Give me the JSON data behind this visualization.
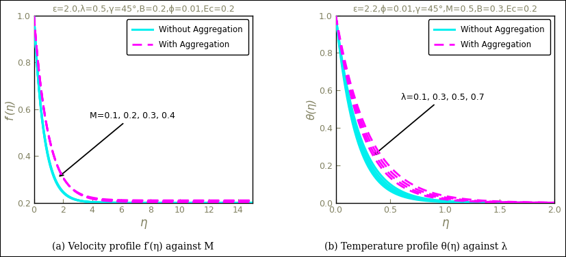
{
  "left_title": "ε=2.0,λ=0.5,γ=45°,B=0.2,ϕ=0.01,Ec=0.2",
  "right_title": "ε=2.2,ϕ=0.01,γ=45°,M=0.5,B=0.3,Ec=0.2",
  "left_xlabel": "η",
  "right_xlabel": "η",
  "left_ylabel": "f′(η)",
  "right_ylabel": "θ(η)",
  "left_caption": "(a) Velocity profile f′(η) against M",
  "right_caption": "(b) Temperature profile θ(η) against λ",
  "left_annotation": "M=0.1, 0.2, 0.3, 0.4",
  "right_annotation": "λ=0.1, 0.3, 0.5, 0.7",
  "left_xlim": [
    0,
    15
  ],
  "left_ylim": [
    0.2,
    1.0
  ],
  "right_xlim": [
    0,
    2.0
  ],
  "right_ylim": [
    0,
    1.0
  ],
  "left_xticks": [
    0,
    2,
    4,
    6,
    8,
    10,
    12,
    14
  ],
  "left_yticks": [
    0.2,
    0.4,
    0.6,
    0.8,
    1.0
  ],
  "right_xticks": [
    0.0,
    0.5,
    1.0,
    1.5,
    2.0
  ],
  "right_yticks": [
    0.0,
    0.2,
    0.4,
    0.6,
    0.8,
    1.0
  ],
  "cyan_color": "#00EFEF",
  "magenta_color": "#FF00FF",
  "legend_without": "Without Aggregation",
  "legend_with": "With Aggregation",
  "tick_color": "#808060",
  "spine_color": "#000000",
  "title_color": "#808060",
  "background_color": "#ffffff",
  "border_color": "#000000"
}
